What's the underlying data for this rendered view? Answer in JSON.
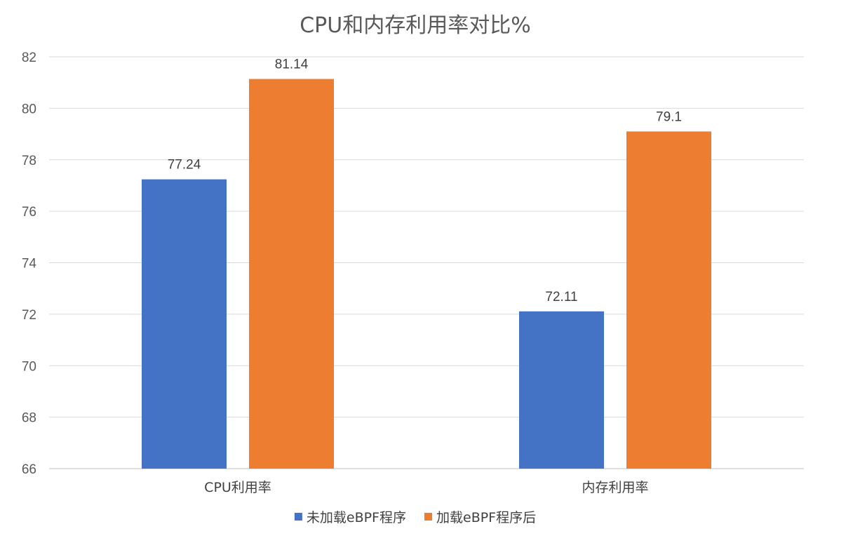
{
  "chart_data": {
    "type": "bar",
    "title": "CPU和内存利用率对比%",
    "categories": [
      "CPU利用率",
      "内存利用率"
    ],
    "series": [
      {
        "name": "未加载eBPF程序",
        "values": [
          77.24,
          72.11
        ],
        "color": "#4472C4"
      },
      {
        "name": "加载eBPF程序后",
        "values": [
          81.14,
          79.1
        ],
        "color": "#ED7D31"
      }
    ],
    "ylim": [
      66,
      82
    ],
    "yticks": [
      66,
      68,
      70,
      72,
      74,
      76,
      78,
      80,
      82
    ],
    "grid": true,
    "legend_position": "bottom",
    "data_labels": true
  }
}
